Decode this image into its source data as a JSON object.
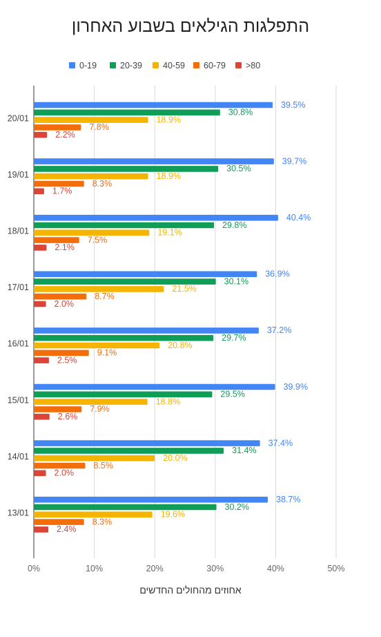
{
  "chart_data": {
    "type": "bar",
    "orientation": "horizontal",
    "title": "התפלגות הגילאים בשבוע האחרון",
    "xlabel": "אחוזים מהחולים החדשים",
    "ylabel": "",
    "xlim": [
      0,
      50
    ],
    "x_ticks": [
      "0%",
      "10%",
      "20%",
      "30%",
      "40%",
      "50%"
    ],
    "grid": true,
    "legend_position": "top",
    "categories": [
      "20/01",
      "19/01",
      "18/01",
      "17/01",
      "16/01",
      "15/01",
      "14/01",
      "13/01"
    ],
    "series": [
      {
        "name": "0-19",
        "color": "#4285f4",
        "values": [
          39.5,
          39.7,
          40.4,
          36.9,
          37.2,
          39.9,
          37.4,
          38.7
        ]
      },
      {
        "name": "20-39",
        "color": "#0f9d58",
        "values": [
          30.8,
          30.5,
          29.8,
          30.1,
          29.7,
          29.5,
          31.4,
          30.2
        ]
      },
      {
        "name": "40-59",
        "color": "#f4b400",
        "values": [
          18.9,
          18.9,
          19.1,
          21.5,
          20.8,
          18.8,
          20.0,
          19.6
        ]
      },
      {
        "name": "60-79",
        "color": "#f46d0b",
        "values": [
          7.8,
          8.3,
          7.5,
          8.7,
          9.1,
          7.9,
          8.5,
          8.3
        ]
      },
      {
        "name": ">80",
        "color": "#db4437",
        "values": [
          2.2,
          1.7,
          2.1,
          2.0,
          2.5,
          2.6,
          2.0,
          2.4
        ]
      }
    ]
  }
}
